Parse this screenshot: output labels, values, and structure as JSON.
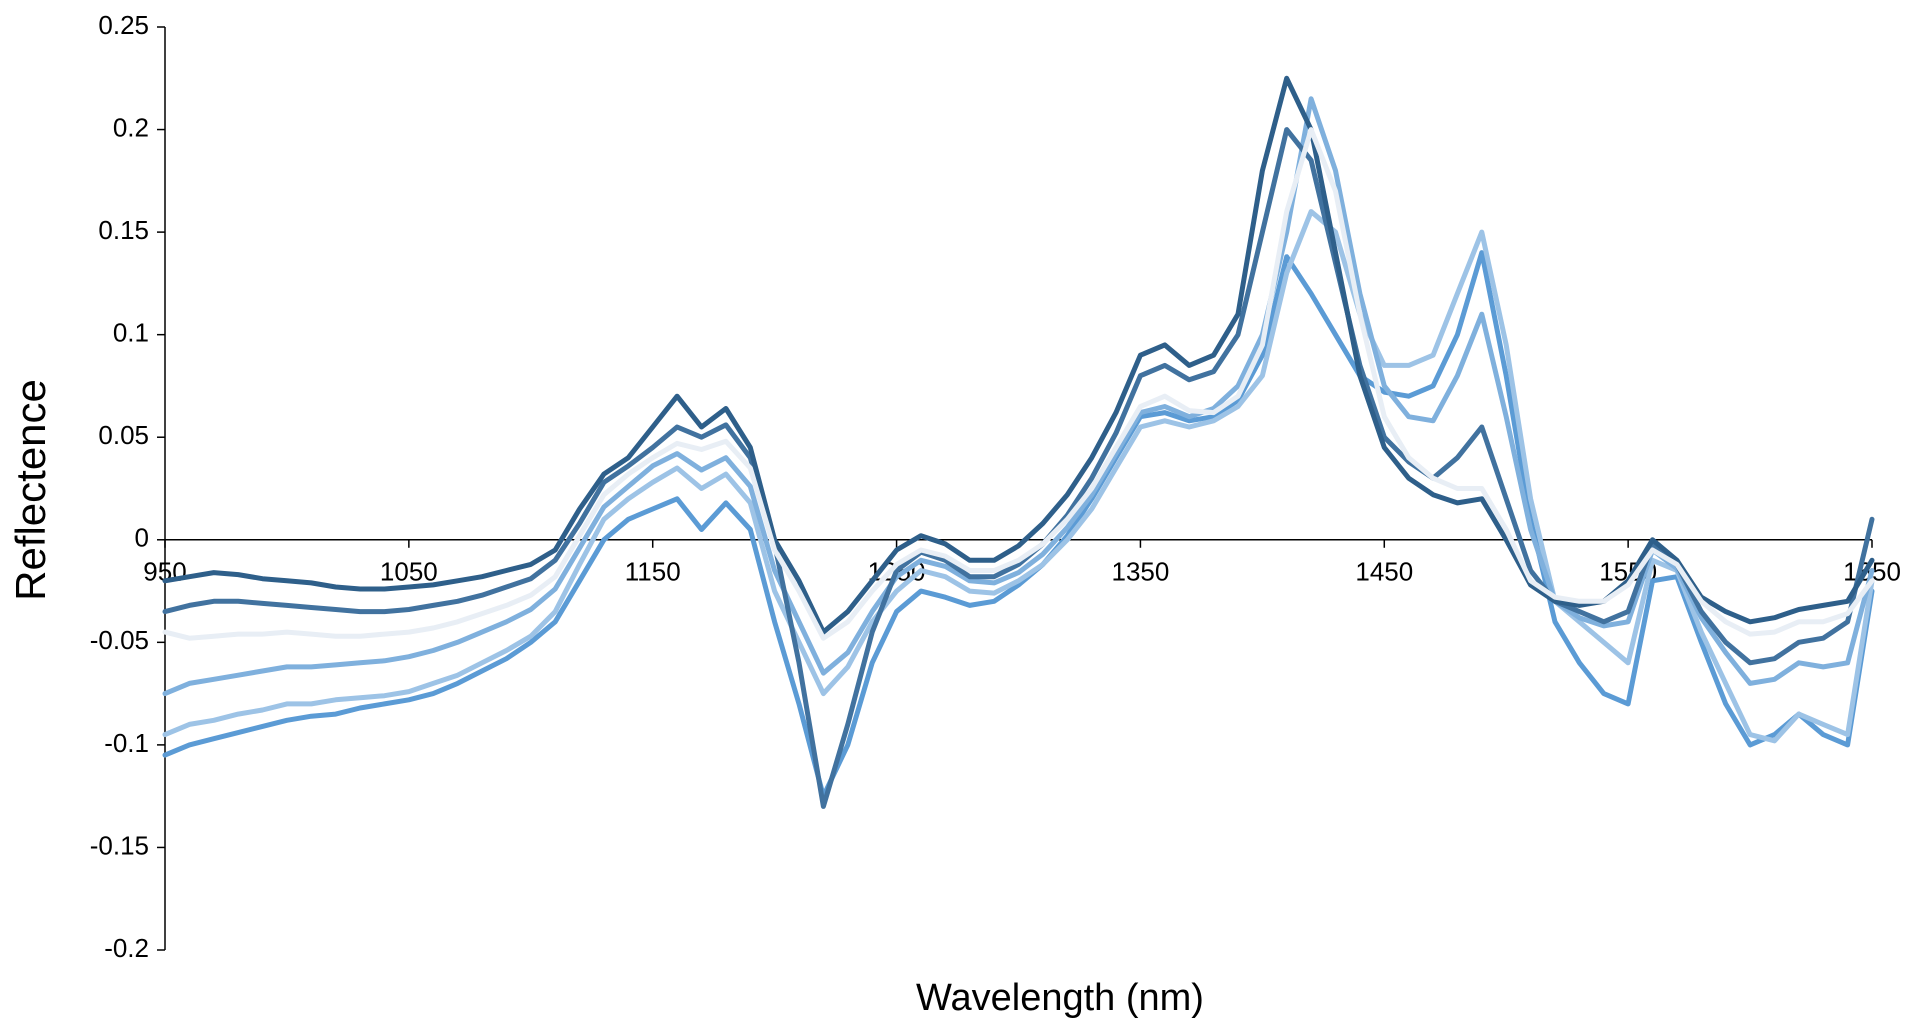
{
  "chart_data": {
    "type": "line",
    "x_label": "Wavelength (nm)",
    "y_label": "Reflectence",
    "xlim": [
      950,
      1650
    ],
    "xticks": [
      950,
      1050,
      1150,
      1250,
      1350,
      1450,
      1550,
      1650
    ],
    "ylim": [
      -0.2,
      0.25
    ],
    "yticks": [
      0.25,
      0.2,
      0.15,
      0.1,
      0.05,
      0,
      -0.05,
      -0.1,
      -0.15,
      -0.2
    ],
    "x": [
      950,
      960,
      970,
      980,
      990,
      1000,
      1010,
      1020,
      1030,
      1040,
      1050,
      1060,
      1070,
      1080,
      1090,
      1100,
      1110,
      1120,
      1130,
      1140,
      1150,
      1160,
      1170,
      1180,
      1190,
      1200,
      1210,
      1220,
      1230,
      1240,
      1250,
      1260,
      1270,
      1280,
      1290,
      1300,
      1310,
      1320,
      1330,
      1340,
      1350,
      1360,
      1370,
      1380,
      1390,
      1400,
      1410,
      1420,
      1430,
      1440,
      1450,
      1460,
      1470,
      1480,
      1490,
      1500,
      1510,
      1520,
      1530,
      1540,
      1550,
      1560,
      1570,
      1580,
      1590,
      1600,
      1610,
      1620,
      1630,
      1640,
      1650
    ],
    "series": [
      {
        "color": "#5b9bd5",
        "values": [
          -0.105,
          -0.1,
          -0.097,
          -0.094,
          -0.091,
          -0.088,
          -0.086,
          -0.085,
          -0.082,
          -0.08,
          -0.078,
          -0.075,
          -0.07,
          -0.064,
          -0.058,
          -0.05,
          -0.04,
          -0.02,
          0,
          0.01,
          0.015,
          0.02,
          0.005,
          0.018,
          0.005,
          -0.04,
          -0.08,
          -0.125,
          -0.1,
          -0.06,
          -0.035,
          -0.025,
          -0.028,
          -0.032,
          -0.03,
          -0.022,
          -0.012,
          0.002,
          0.02,
          0.04,
          0.06,
          0.062,
          0.058,
          0.06,
          0.068,
          0.09,
          0.138,
          0.12,
          0.1,
          0.08,
          0.072,
          0.07,
          0.075,
          0.1,
          0.14,
          0.08,
          0.01,
          -0.04,
          -0.06,
          -0.075,
          -0.08,
          -0.02,
          -0.018,
          -0.05,
          -0.08,
          -0.1,
          -0.095,
          -0.085,
          -0.095,
          -0.1,
          -0.025
        ]
      },
      {
        "color": "#9dc3e6",
        "values": [
          -0.095,
          -0.09,
          -0.088,
          -0.085,
          -0.083,
          -0.08,
          -0.08,
          -0.078,
          -0.077,
          -0.076,
          -0.074,
          -0.07,
          -0.066,
          -0.06,
          -0.054,
          -0.047,
          -0.035,
          -0.012,
          0.01,
          0.02,
          0.028,
          0.035,
          0.025,
          0.032,
          0.018,
          -0.025,
          -0.05,
          -0.075,
          -0.062,
          -0.04,
          -0.025,
          -0.015,
          -0.018,
          -0.025,
          -0.026,
          -0.02,
          -0.012,
          0,
          0.015,
          0.035,
          0.055,
          0.058,
          0.055,
          0.058,
          0.065,
          0.08,
          0.13,
          0.16,
          0.15,
          0.11,
          0.085,
          0.085,
          0.09,
          0.12,
          0.15,
          0.095,
          0.02,
          -0.03,
          -0.04,
          -0.05,
          -0.06,
          -0.01,
          -0.015,
          -0.045,
          -0.07,
          -0.095,
          -0.098,
          -0.085,
          -0.09,
          -0.095,
          -0.02
        ]
      },
      {
        "color": "#7fb0dd",
        "values": [
          -0.075,
          -0.07,
          -0.068,
          -0.066,
          -0.064,
          -0.062,
          -0.062,
          -0.061,
          -0.06,
          -0.059,
          -0.057,
          -0.054,
          -0.05,
          -0.045,
          -0.04,
          -0.034,
          -0.024,
          -0.004,
          0.016,
          0.026,
          0.036,
          0.042,
          0.034,
          0.04,
          0.026,
          -0.015,
          -0.04,
          -0.065,
          -0.055,
          -0.035,
          -0.018,
          -0.01,
          -0.013,
          -0.02,
          -0.021,
          -0.016,
          -0.007,
          0.006,
          0.022,
          0.042,
          0.062,
          0.065,
          0.06,
          0.064,
          0.075,
          0.1,
          0.15,
          0.215,
          0.18,
          0.12,
          0.075,
          0.06,
          0.058,
          0.08,
          0.11,
          0.06,
          0.005,
          -0.03,
          -0.038,
          -0.042,
          -0.04,
          -0.005,
          -0.014,
          -0.038,
          -0.055,
          -0.07,
          -0.068,
          -0.06,
          -0.062,
          -0.06,
          -0.015
        ]
      },
      {
        "color": "#41729f",
        "values": [
          -0.035,
          -0.032,
          -0.03,
          -0.03,
          -0.031,
          -0.032,
          -0.033,
          -0.034,
          -0.035,
          -0.035,
          -0.034,
          -0.032,
          -0.03,
          -0.027,
          -0.023,
          -0.019,
          -0.01,
          0.008,
          0.028,
          0.036,
          0.045,
          0.055,
          0.05,
          0.056,
          0.04,
          -0.002,
          -0.06,
          -0.13,
          -0.09,
          -0.045,
          -0.015,
          -0.006,
          -0.01,
          -0.018,
          -0.018,
          -0.012,
          -0.002,
          0.012,
          0.03,
          0.052,
          0.08,
          0.085,
          0.078,
          0.082,
          0.1,
          0.15,
          0.2,
          0.185,
          0.135,
          0.085,
          0.05,
          0.038,
          0.03,
          0.04,
          0.055,
          0.02,
          -0.015,
          -0.03,
          -0.035,
          -0.04,
          -0.035,
          -0.002,
          -0.012,
          -0.035,
          -0.05,
          -0.06,
          -0.058,
          -0.05,
          -0.048,
          -0.04,
          0.01
        ]
      },
      {
        "color": "#2e5f8a",
        "values": [
          -0.02,
          -0.018,
          -0.016,
          -0.017,
          -0.019,
          -0.02,
          -0.021,
          -0.023,
          -0.024,
          -0.024,
          -0.023,
          -0.022,
          -0.02,
          -0.018,
          -0.015,
          -0.012,
          -0.005,
          0.015,
          0.032,
          0.04,
          0.055,
          0.07,
          0.055,
          0.064,
          0.045,
          0,
          -0.02,
          -0.045,
          -0.035,
          -0.02,
          -0.005,
          0.002,
          -0.002,
          -0.01,
          -0.01,
          -0.003,
          0.008,
          0.022,
          0.04,
          0.062,
          0.09,
          0.095,
          0.085,
          0.09,
          0.11,
          0.18,
          0.225,
          0.2,
          0.14,
          0.08,
          0.045,
          0.03,
          0.022,
          0.018,
          0.02,
          0,
          -0.022,
          -0.03,
          -0.032,
          -0.03,
          -0.02,
          0,
          -0.01,
          -0.028,
          -0.035,
          -0.04,
          -0.038,
          -0.034,
          -0.032,
          -0.03,
          -0.01
        ]
      },
      {
        "color": "#e8eef5",
        "values": [
          -0.045,
          -0.048,
          -0.047,
          -0.046,
          -0.046,
          -0.045,
          -0.046,
          -0.047,
          -0.047,
          -0.046,
          -0.045,
          -0.043,
          -0.04,
          -0.036,
          -0.032,
          -0.027,
          -0.018,
          0.002,
          0.022,
          0.032,
          0.04,
          0.047,
          0.044,
          0.048,
          0.035,
          -0.005,
          -0.025,
          -0.048,
          -0.04,
          -0.025,
          -0.012,
          -0.005,
          -0.008,
          -0.015,
          -0.015,
          -0.01,
          -0.002,
          0.01,
          0.025,
          0.045,
          0.065,
          0.07,
          0.063,
          0.062,
          0.07,
          0.095,
          0.16,
          0.2,
          0.17,
          0.11,
          0.06,
          0.04,
          0.03,
          0.025,
          0.025,
          0.005,
          -0.02,
          -0.028,
          -0.03,
          -0.03,
          -0.022,
          -0.005,
          -0.012,
          -0.03,
          -0.04,
          -0.046,
          -0.045,
          -0.04,
          -0.04,
          -0.036,
          -0.02
        ]
      }
    ]
  }
}
